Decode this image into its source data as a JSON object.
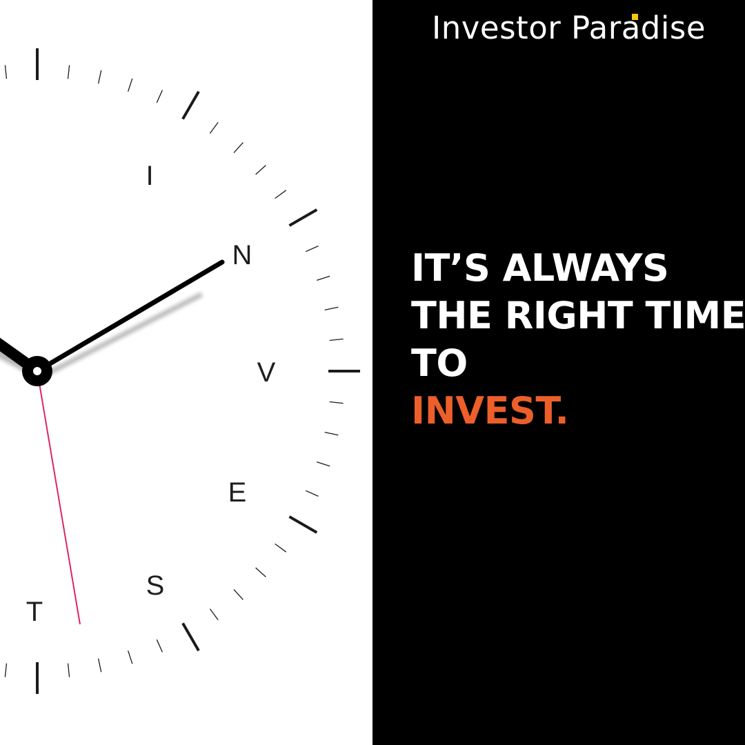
{
  "brand": {
    "name": "Investor Paradise",
    "accent_color": "#f5c518"
  },
  "headline": {
    "line1": "IT’S ALWAYS",
    "line2": "THE RIGHT TIME",
    "line3": "TO",
    "line4": "INVEST.",
    "text_color": "#ffffff",
    "accent_color": "#ec5f2b"
  },
  "clock": {
    "letters": [
      "I",
      "N",
      "V",
      "E",
      "S",
      "T"
    ],
    "hand_color": "#000000",
    "second_hand_color": "#e0245e"
  },
  "colors": {
    "left_background": "#ffffff",
    "right_background": "#000000"
  }
}
